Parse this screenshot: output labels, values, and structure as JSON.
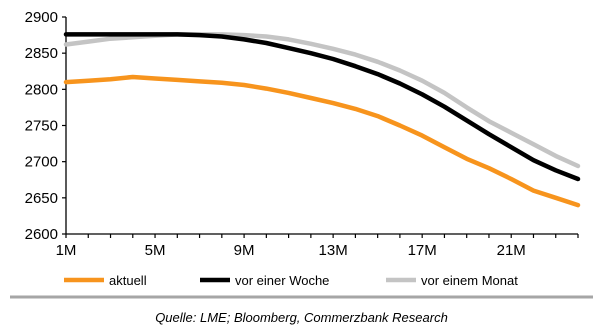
{
  "chart_data": {
    "type": "line",
    "x_labels": [
      "1M",
      "5M",
      "9M",
      "13M",
      "17M",
      "21M"
    ],
    "x_range": [
      1,
      24
    ],
    "ylim": [
      2600,
      2900
    ],
    "y_ticks": [
      2600,
      2650,
      2700,
      2750,
      2800,
      2850,
      2900
    ],
    "grid": false,
    "legend_position": "bottom",
    "source": "Quelle: LME; Bloomberg, Commerzbank Research",
    "series": [
      {
        "name": "aktuell",
        "color": "#f7941d",
        "x": [
          1,
          2,
          3,
          4,
          5,
          6,
          7,
          8,
          9,
          10,
          11,
          12,
          13,
          14,
          15,
          16,
          17,
          18,
          19,
          20,
          21,
          22,
          23,
          24
        ],
        "values": [
          2810,
          2812,
          2814,
          2817,
          2815,
          2813,
          2811,
          2809,
          2806,
          2801,
          2795,
          2788,
          2781,
          2773,
          2763,
          2750,
          2736,
          2720,
          2704,
          2691,
          2676,
          2660,
          2650,
          2640
        ]
      },
      {
        "name": "vor einer Woche",
        "color": "#000000",
        "x": [
          1,
          2,
          3,
          4,
          5,
          6,
          7,
          8,
          9,
          10,
          11,
          12,
          13,
          14,
          15,
          16,
          17,
          18,
          19,
          20,
          21,
          22,
          23,
          24
        ],
        "values": [
          2876,
          2876,
          2876,
          2876,
          2876,
          2876,
          2875,
          2873,
          2869,
          2864,
          2857,
          2850,
          2842,
          2832,
          2821,
          2808,
          2793,
          2776,
          2757,
          2738,
          2720,
          2702,
          2688,
          2676
        ]
      },
      {
        "name": "vor einem Monat",
        "color": "#c4c4c4",
        "x": [
          1,
          2,
          3,
          4,
          5,
          6,
          7,
          8,
          9,
          10,
          11,
          12,
          13,
          14,
          15,
          16,
          17,
          18,
          19,
          20,
          21,
          22,
          23,
          24
        ],
        "values": [
          2862,
          2866,
          2870,
          2872,
          2874,
          2876,
          2876,
          2876,
          2875,
          2873,
          2869,
          2863,
          2856,
          2848,
          2838,
          2826,
          2812,
          2795,
          2775,
          2756,
          2740,
          2724,
          2708,
          2694
        ]
      }
    ]
  }
}
